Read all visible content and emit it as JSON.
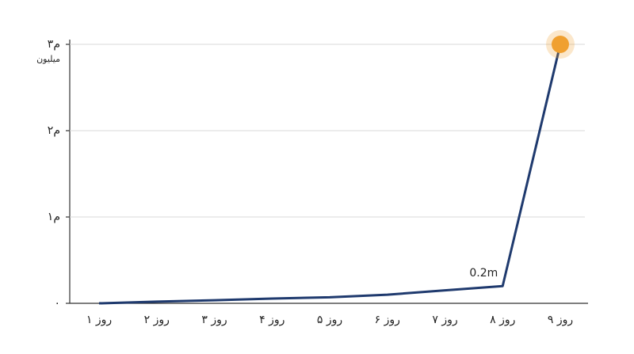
{
  "chart_data": {
    "type": "line",
    "categories": [
      "روز ۱",
      "روز ۲",
      "روز ۳",
      "روز ۴",
      "روز ۵",
      "روز ۶",
      "روز ۷",
      "روز ۸",
      "روز ۹"
    ],
    "values": [
      0,
      0.02,
      0.035,
      0.055,
      0.07,
      0.1,
      0.15,
      0.2,
      3
    ],
    "value_labels": [
      null,
      null,
      null,
      null,
      null,
      null,
      null,
      "0.2m",
      null
    ],
    "color": "#1f3a6e",
    "marker_color": "#f0a030",
    "ylim": [
      0,
      3
    ],
    "yticks": [
      {
        "value": 0,
        "label": "۰"
      },
      {
        "value": 1,
        "label": "۱م"
      },
      {
        "value": 2,
        "label": "۲م"
      },
      {
        "value": 3,
        "label": "۳م"
      }
    ],
    "y_unit": "میلیون",
    "grid": true
  }
}
